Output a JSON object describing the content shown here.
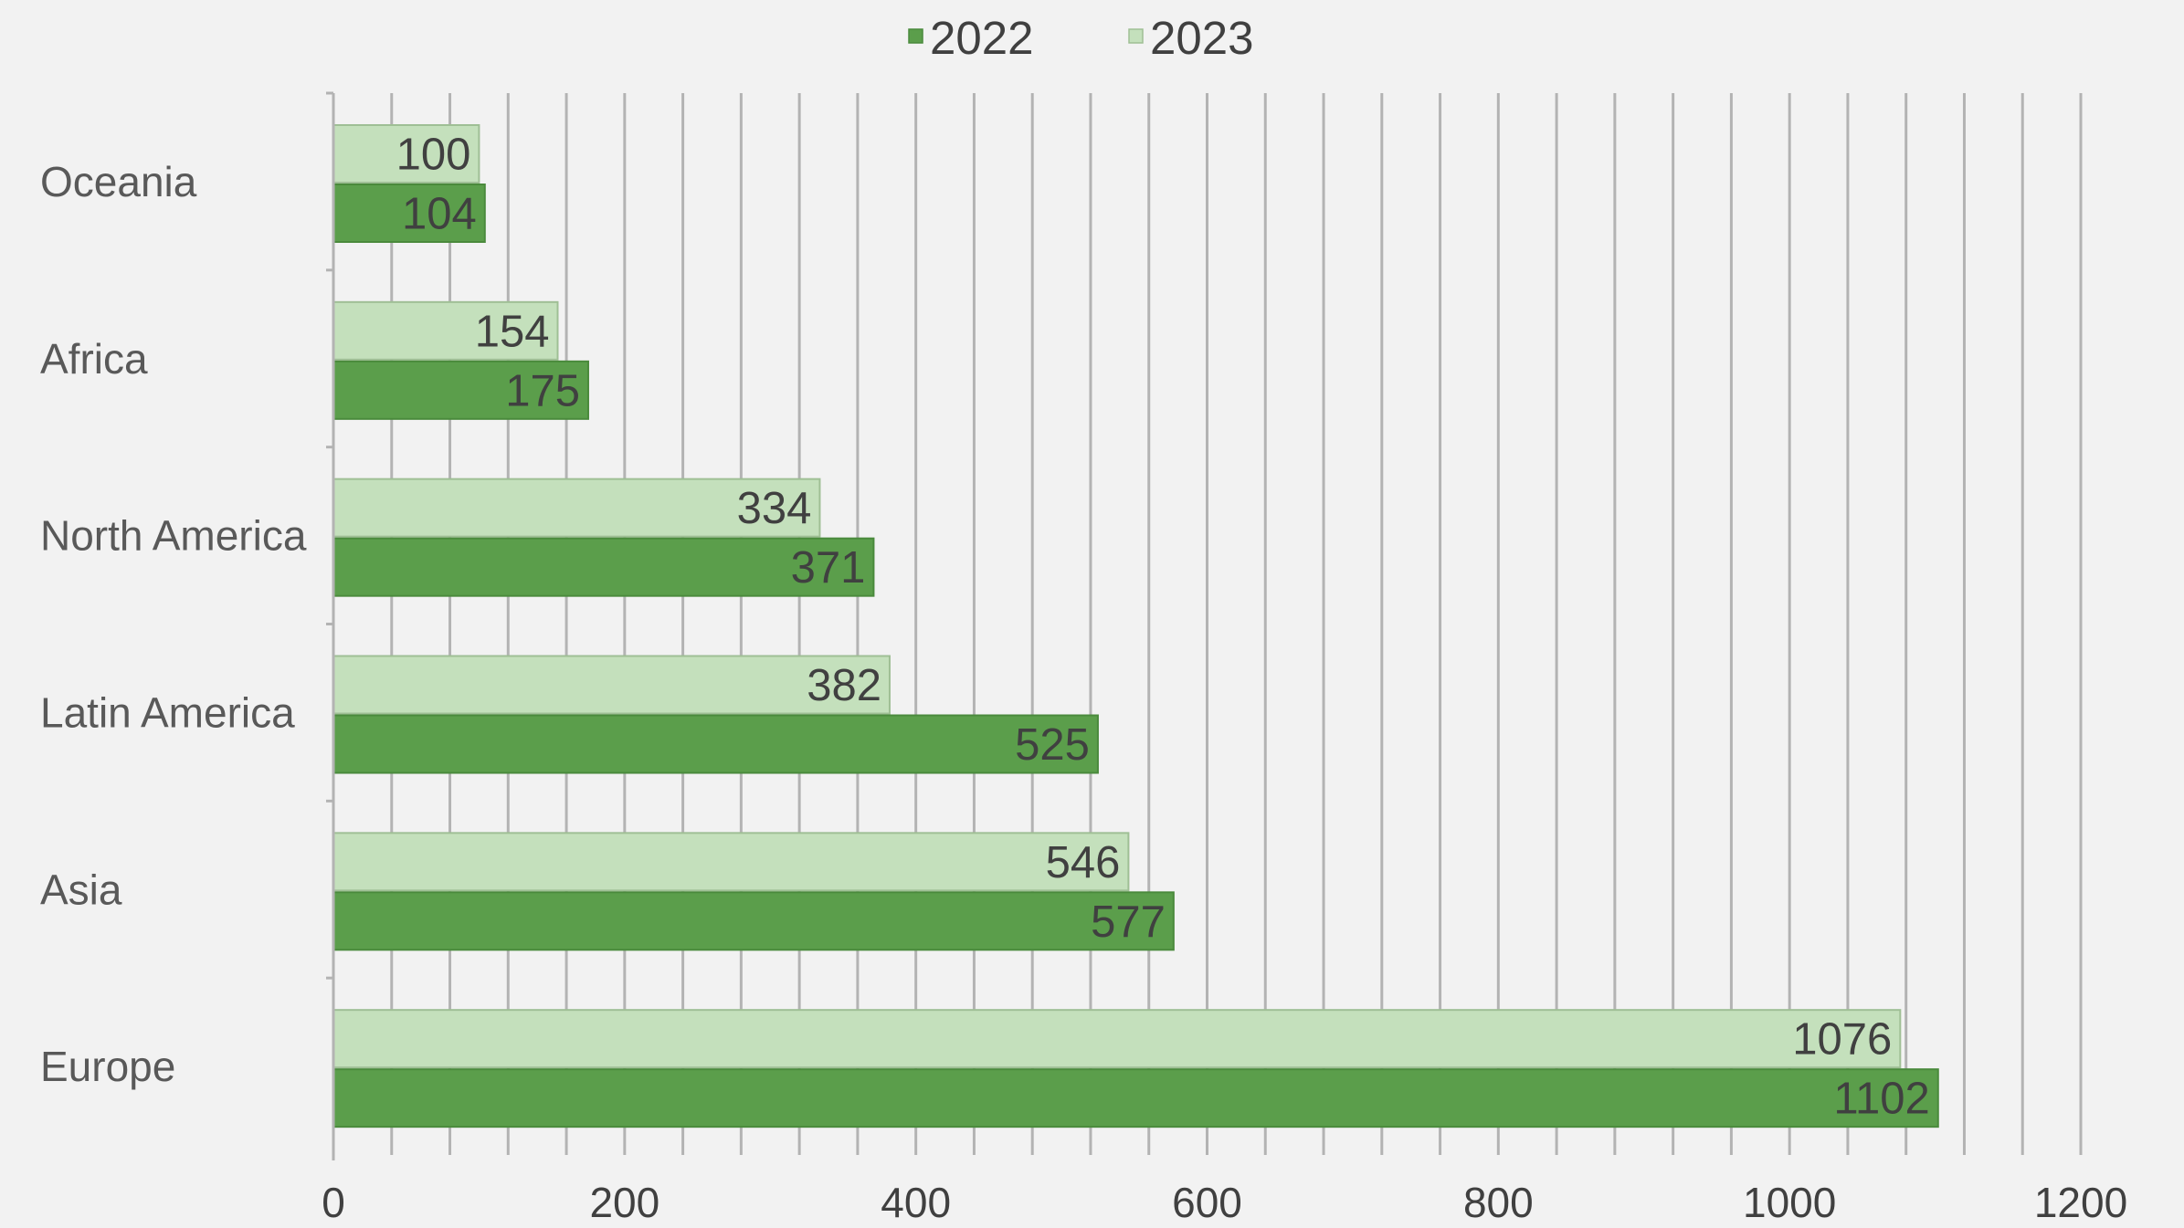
{
  "chart_data": {
    "type": "bar",
    "orientation": "horizontal",
    "categories": [
      "Oceania",
      "Africa",
      "North America",
      "Latin America",
      "Asia",
      "Europe"
    ],
    "series": [
      {
        "name": "2022",
        "values": [
          104,
          175,
          371,
          525,
          577,
          1102
        ],
        "color": "#5b9e4b"
      },
      {
        "name": "2023",
        "values": [
          100,
          154,
          334,
          382,
          546,
          1076
        ],
        "color": "#c4e0bc"
      }
    ],
    "xlim": [
      0,
      1200
    ],
    "xticks": [
      0,
      200,
      400,
      600,
      800,
      1000,
      1200
    ],
    "minor_gridline_step": 40,
    "grid": true,
    "legend_position": "top",
    "data_labels": true,
    "title": "",
    "xlabel": "",
    "ylabel": ""
  }
}
